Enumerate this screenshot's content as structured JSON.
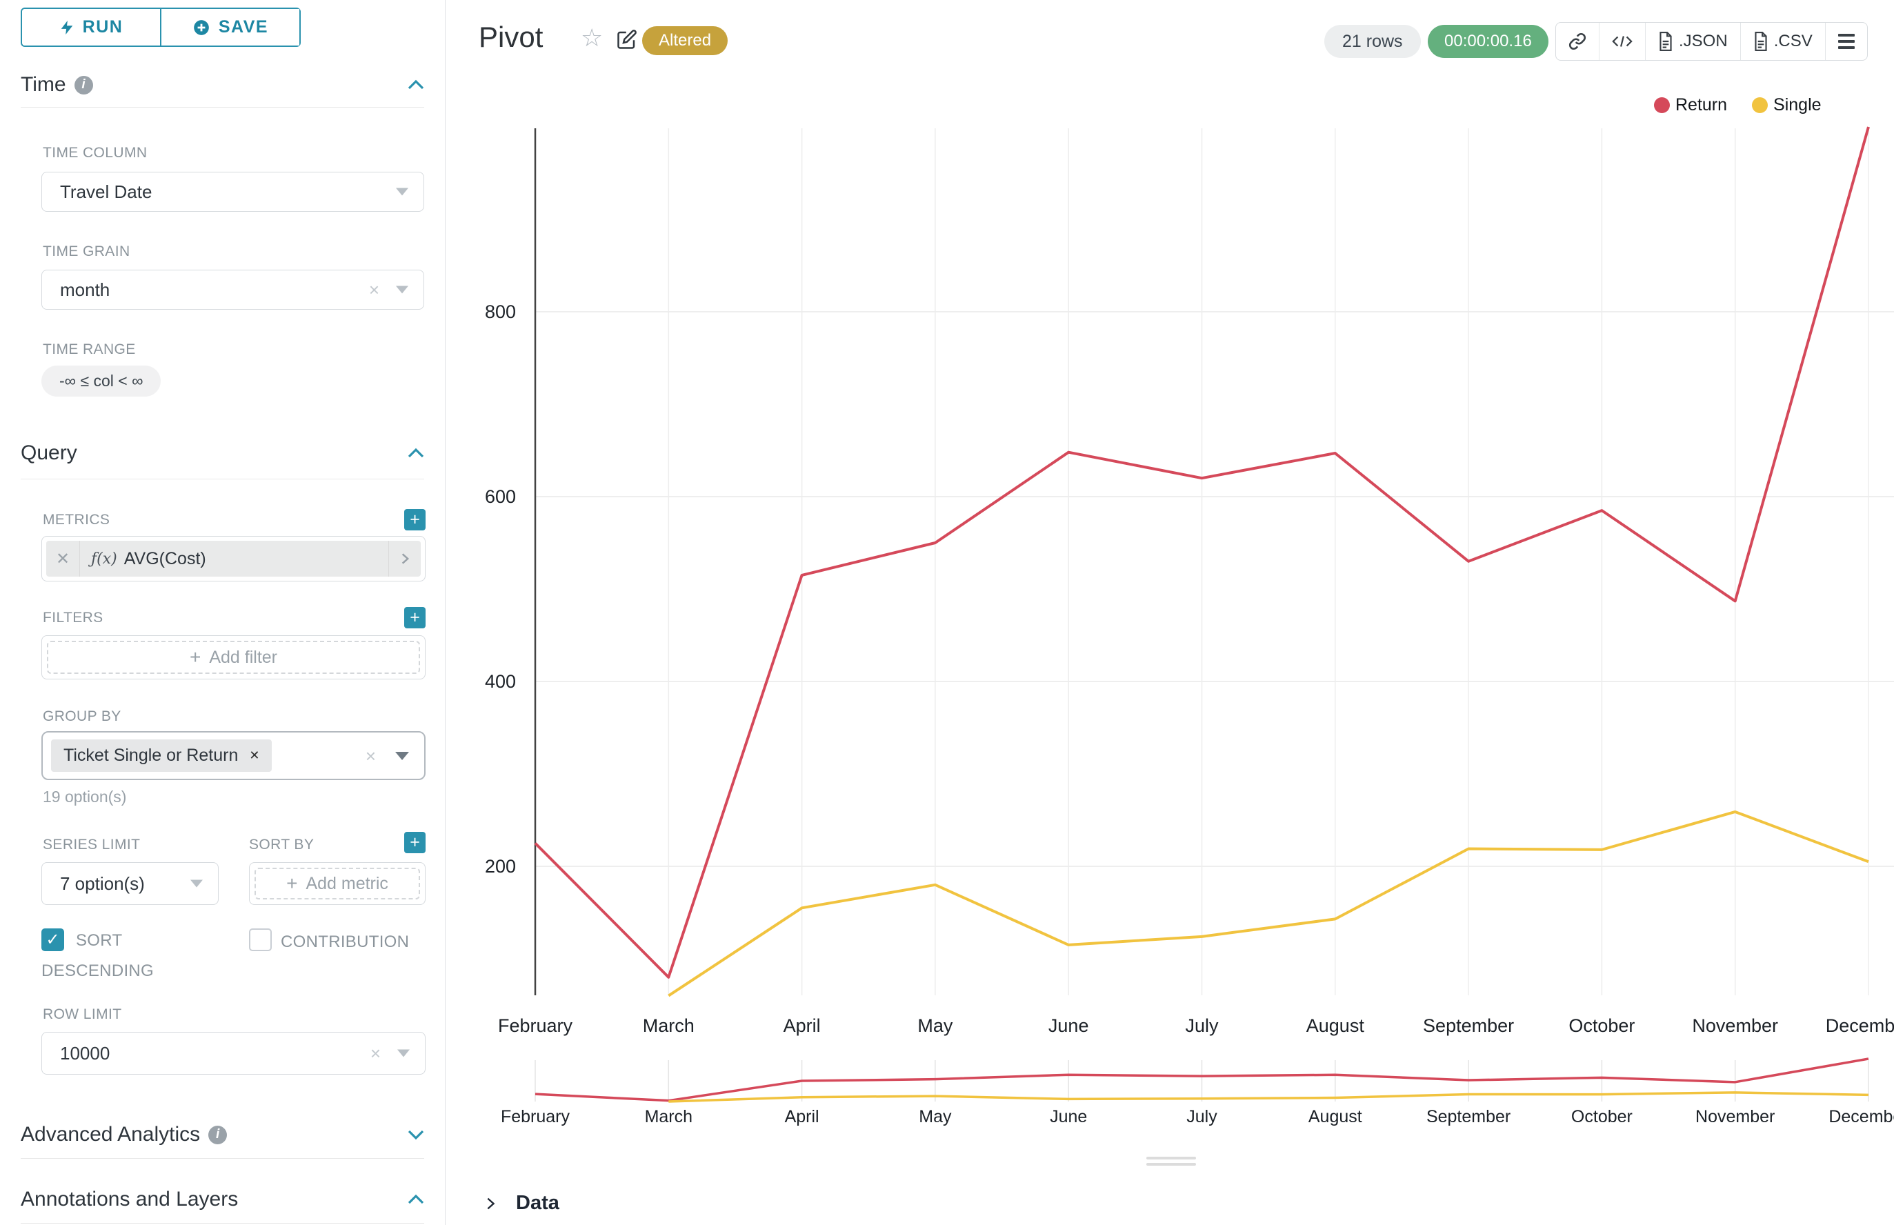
{
  "left_panel": {
    "run_label": "RUN",
    "save_label": "SAVE",
    "sections": {
      "time": "Time",
      "query": "Query",
      "advanced_analytics": "Advanced Analytics",
      "annotations": "Annotations and Layers"
    },
    "time": {
      "time_column": {
        "label": "TIME COLUMN",
        "value": "Travel Date"
      },
      "time_grain": {
        "label": "TIME GRAIN",
        "value": "month"
      },
      "time_range": {
        "label": "TIME RANGE",
        "value": "-∞ ≤ col < ∞"
      }
    },
    "query": {
      "metrics": {
        "label": "METRICS",
        "fx_prefix": "ƒ(x)",
        "value": "AVG(Cost)"
      },
      "filters": {
        "label": "FILTERS",
        "placeholder": "Add filter"
      },
      "group_by": {
        "label": "GROUP BY",
        "token": "Ticket Single or Return",
        "options_hint": "19 option(s)"
      },
      "series_limit": {
        "label": "SERIES LIMIT",
        "value": "7 option(s)"
      },
      "sort_by": {
        "label": "SORT BY",
        "placeholder": "Add metric"
      },
      "sort_descending_label": "SORT DESCENDING",
      "contribution_label": "CONTRIBUTION",
      "row_limit": {
        "label": "ROW LIMIT",
        "value": "10000"
      }
    }
  },
  "header": {
    "title": "Pivot",
    "badge": "Altered",
    "row_count": "21 rows",
    "timer": "00:00:00.16",
    "export_json_label": ".JSON",
    "export_csv_label": ".CSV"
  },
  "data_panel": {
    "title": "Data"
  },
  "colors": {
    "accent_teal": "#2a92ae",
    "accent_text": "#1d87a3",
    "badge_gold": "#c6a23c",
    "timer_green": "#64b07e",
    "series_return_red": "#d5495a",
    "series_single_yellow": "#f1c33f"
  },
  "chart_data": {
    "type": "line",
    "title": "Pivot",
    "categories": [
      "February",
      "March",
      "April",
      "May",
      "June",
      "July",
      "August",
      "September",
      "October",
      "November",
      "December"
    ],
    "series": [
      {
        "name": "Return",
        "color": "#d5495a",
        "values": [
          225,
          80,
          515,
          550,
          648,
          620,
          647,
          530,
          585,
          487,
          1000
        ]
      },
      {
        "name": "Single",
        "color": "#f1c33f",
        "values": [
          null,
          60,
          155,
          180,
          115,
          124,
          143,
          219,
          218,
          259,
          205
        ]
      }
    ],
    "y_ticks": [
      200,
      400,
      600,
      800
    ],
    "ylim": [
      60,
      1005
    ],
    "xlabel": "",
    "ylabel": "",
    "grid": true,
    "legend_position": "top-right",
    "has_mini_range_chart": true
  }
}
